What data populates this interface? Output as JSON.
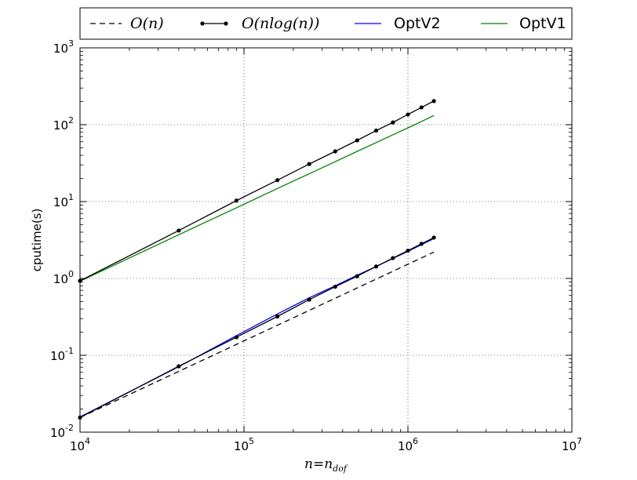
{
  "chart_data": {
    "type": "line",
    "xscale": "log",
    "yscale": "log",
    "xlim": [
      10000,
      10000000
    ],
    "ylim": [
      0.01,
      1000
    ],
    "grid": true,
    "legend_position": "top",
    "xlabel": "n=n_dof",
    "ylabel": "cputime(s)",
    "x_ticks": [
      {
        "value": 10000,
        "base": "10",
        "exp": "4"
      },
      {
        "value": 100000,
        "base": "10",
        "exp": "5"
      },
      {
        "value": 1000000,
        "base": "10",
        "exp": "6"
      },
      {
        "value": 10000000,
        "base": "10",
        "exp": "7"
      }
    ],
    "y_ticks": [
      {
        "value": 0.01,
        "base": "10",
        "exp": "-2"
      },
      {
        "value": 0.1,
        "base": "10",
        "exp": "-1"
      },
      {
        "value": 1,
        "base": "10",
        "exp": "0"
      },
      {
        "value": 10,
        "base": "10",
        "exp": "1"
      },
      {
        "value": 100,
        "base": "10",
        "exp": "2"
      },
      {
        "value": 1000,
        "base": "10",
        "exp": "3"
      }
    ],
    "series": [
      {
        "name": "O(n)",
        "style": "dashed",
        "color": "#000000",
        "x": [
          10000,
          1440000
        ],
        "y": [
          0.0155,
          2.2
        ],
        "markers": false
      },
      {
        "name": "O(nlog(n))",
        "style": "solid",
        "color": "#000000",
        "markers": true,
        "x": [
          10000,
          40000,
          90000,
          160000,
          250000,
          360000,
          490000,
          640000,
          810000,
          1000000,
          1210000,
          1440000
        ],
        "y": [
          0.93,
          4.2,
          10.3,
          19.0,
          30.8,
          45.0,
          62.5,
          84.0,
          107.0,
          136.0,
          168.0,
          203.0
        ],
        "y_lower": [
          0.0155,
          0.072,
          0.172,
          0.32,
          0.53,
          0.78,
          1.07,
          1.43,
          1.84,
          2.3,
          2.82,
          3.4
        ]
      },
      {
        "name": "OptV2",
        "style": "solid",
        "color": "#0000ff",
        "markers": false,
        "x": [
          10000,
          40000,
          90000,
          160000,
          250000,
          360000,
          490000,
          640000,
          810000,
          1000000,
          1210000,
          1440000
        ],
        "y": [
          0.0158,
          0.071,
          0.18,
          0.345,
          0.56,
          0.8,
          1.1,
          1.43,
          1.82,
          2.25,
          2.75,
          3.3
        ]
      },
      {
        "name": "OptV1",
        "style": "solid",
        "color": "#008000",
        "markers": false,
        "x": [
          10000,
          40000,
          90000,
          160000,
          250000,
          360000,
          490000,
          640000,
          810000,
          1000000,
          1210000,
          1440000
        ],
        "y": [
          0.92,
          3.7,
          8.3,
          14.8,
          23.0,
          33.0,
          45.0,
          58.5,
          74.0,
          91.0,
          110.0,
          132.0
        ]
      }
    ]
  },
  "legend": [
    {
      "label": "O(n)",
      "kind": "dashed",
      "color": "#000000"
    },
    {
      "label": "O(nlog(n))",
      "kind": "line-marker",
      "color": "#000000"
    },
    {
      "label": "OptV2",
      "kind": "solid",
      "color": "#0000ff"
    },
    {
      "label": "OptV1",
      "kind": "solid",
      "color": "#008000"
    }
  ],
  "axis_text": {
    "ylabel": "cputime(s)",
    "xlabel_main": "n=n",
    "xlabel_sub": "dof"
  }
}
